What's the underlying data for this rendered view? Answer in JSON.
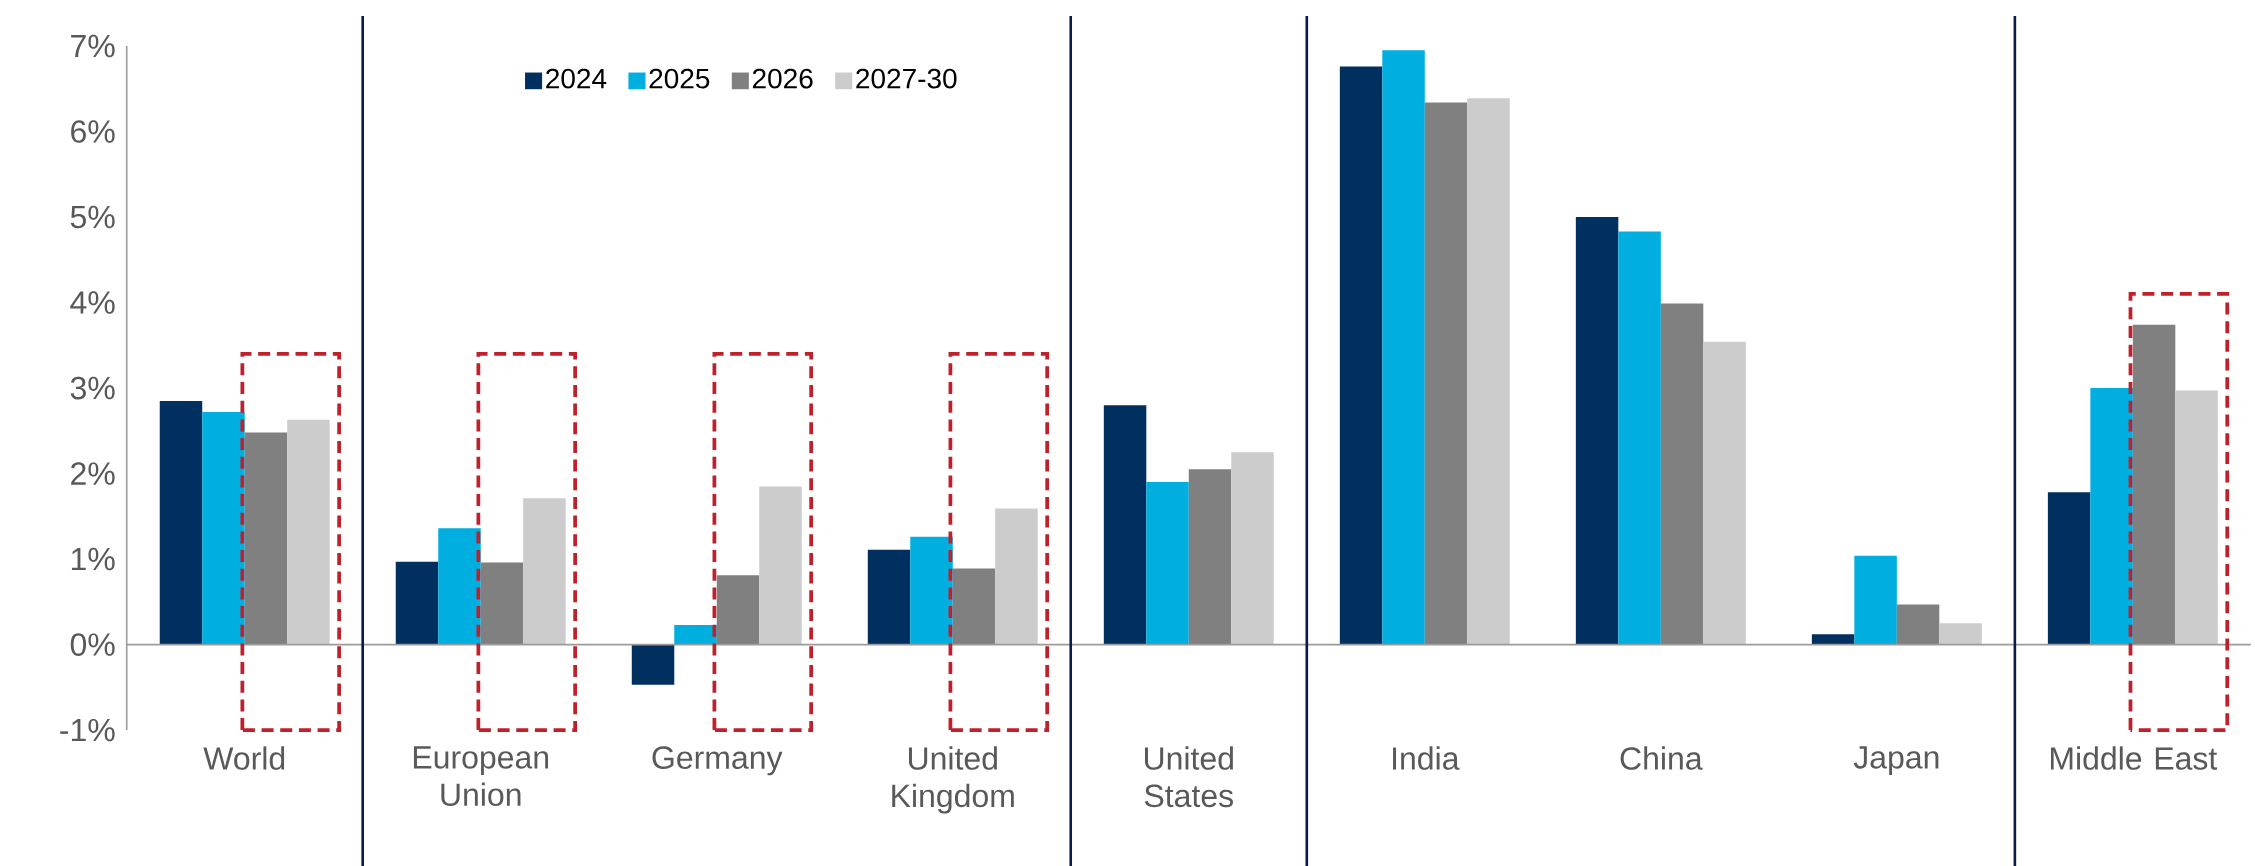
{
  "chart_data": {
    "type": "bar",
    "categories": [
      "World",
      "European Union",
      "Germany",
      "United Kingdom",
      "United States",
      "India",
      "China",
      "Japan",
      "Middle East"
    ],
    "series": [
      {
        "name": "2024",
        "color": "#00305f",
        "values": [
          2.85,
          0.97,
          -0.47,
          1.11,
          2.8,
          6.76,
          5.0,
          0.12,
          1.78
        ]
      },
      {
        "name": "2025",
        "color": "#00aee0",
        "values": [
          2.72,
          1.36,
          0.23,
          1.26,
          1.9,
          6.95,
          4.83,
          1.04,
          3.0
        ]
      },
      {
        "name": "2026",
        "color": "#808080",
        "values": [
          2.48,
          0.96,
          0.81,
          0.89,
          2.05,
          6.34,
          3.99,
          0.47,
          3.74
        ]
      },
      {
        "name": "2027-30",
        "color": "#cccccc",
        "values": [
          2.63,
          1.71,
          1.85,
          1.59,
          2.25,
          6.39,
          3.54,
          0.25,
          2.97
        ]
      }
    ],
    "ylim": [
      -1,
      7
    ],
    "yticks": [
      {
        "value": -1,
        "label": "-1%"
      },
      {
        "value": 0,
        "label": "0%"
      },
      {
        "value": 1,
        "label": "1%"
      },
      {
        "value": 2,
        "label": "2%"
      },
      {
        "value": 3,
        "label": "3%"
      },
      {
        "value": 4,
        "label": "4%"
      },
      {
        "value": 5,
        "label": "5%"
      },
      {
        "value": 6,
        "label": "6%"
      },
      {
        "value": 7,
        "label": "7%"
      }
    ],
    "grid": false,
    "legend": "top"
  }
}
